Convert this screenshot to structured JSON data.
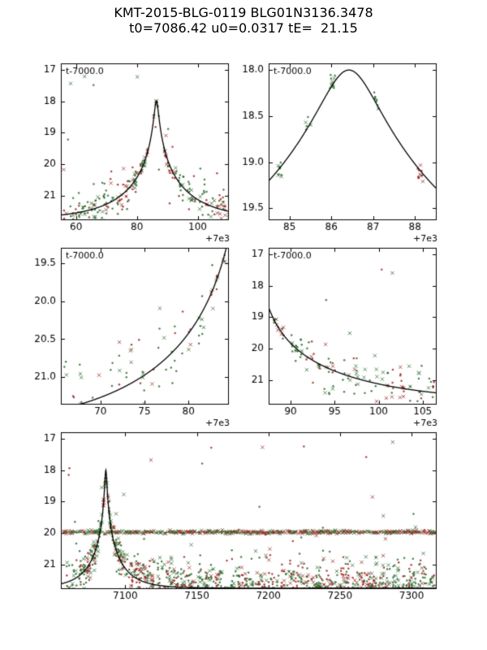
{
  "chart_data": {
    "type": "scatter",
    "title": "KMT-2015-BLG-0119 BLG01N3136.3478",
    "subtitle": "t0=7086.42 u0=0.0317 tE=  21.15",
    "model": {
      "t0": 7086.42,
      "u0": 0.0317,
      "tE": 21.15,
      "baseline_mag": 21.75,
      "color": "#000000",
      "line_width": 1.3
    },
    "point_colors": {
      "green": "#2a6b2a",
      "red": "#9b2727"
    },
    "marker": {
      "dot_radius": 1.25,
      "x_arm": 2.1,
      "x_fraction": 0.32,
      "alpha": 0.85
    },
    "axis_style": {
      "frame_color": "#000000",
      "tick_len": 4,
      "tick_label_size": 12,
      "annotation_size": 11,
      "offset_label_size": 11
    },
    "panels": [
      {
        "name": "top-left",
        "x_offset": 7000,
        "xlim": [
          55,
          110
        ],
        "ylim_bright": 16.8,
        "ylim_faint": 21.75,
        "xticks": [
          {
            "v": 60,
            "label": "60"
          },
          {
            "v": 80,
            "label": "80"
          },
          {
            "v": 100,
            "label": "100"
          }
        ],
        "yticks": [
          {
            "v": 17,
            "label": "17"
          },
          {
            "v": 18,
            "label": "18"
          },
          {
            "v": 19,
            "label": "19"
          },
          {
            "v": 20,
            "label": "20"
          },
          {
            "v": 21,
            "label": "21"
          }
        ],
        "annotation": "t-7000.0",
        "offset_label": "+7e3",
        "scatter": {
          "seed": 11,
          "t_start": 56,
          "t_end": 110,
          "night_step": 0.7,
          "night_jitter": 0.25,
          "skip_frac": 0.12,
          "pts_min": 2,
          "pts_max": 6,
          "intra_spread": 0.18,
          "sigma_base": 0.05,
          "sigma_faint_coef": 0.13,
          "sigma_faint_ref": 19.3,
          "outlier_frac": 0.1,
          "outlier_sigma": 0.9,
          "extreme_frac": 0.006,
          "green_frac": 0.62
        }
      },
      {
        "name": "top-right",
        "x_offset": 7000,
        "xlim": [
          84.5,
          88.5
        ],
        "ylim_bright": 17.93,
        "ylim_faint": 19.62,
        "xticks": [
          {
            "v": 85,
            "label": "85"
          },
          {
            "v": 86,
            "label": "86"
          },
          {
            "v": 87,
            "label": "87"
          },
          {
            "v": 88,
            "label": "88"
          }
        ],
        "yticks": [
          {
            "v": 18.0,
            "label": "18.0"
          },
          {
            "v": 18.5,
            "label": "18.5"
          },
          {
            "v": 19.0,
            "label": "19.0"
          },
          {
            "v": 19.5,
            "label": "19.5"
          }
        ],
        "annotation": "t-7000.0",
        "offset_label": "+7e3",
        "scatter": {
          "seed": 22,
          "nights": [
            84.78,
            85.45,
            86.02,
            87.05,
            88.12
          ],
          "pts_min": 5,
          "pts_max": 11,
          "intra_spread": 0.07,
          "sigma_base": 0.07,
          "sigma_faint_coef": 0,
          "sigma_faint_ref": 0,
          "outlier_frac": 0,
          "outlier_sigma": 0,
          "extreme_frac": 0,
          "green_frac": 0.6
        }
      },
      {
        "name": "middle-left",
        "x_offset": 7000,
        "xlim": [
          65.5,
          84.5
        ],
        "ylim_bright": 19.3,
        "ylim_faint": 21.35,
        "xticks": [
          {
            "v": 70,
            "label": "70"
          },
          {
            "v": 75,
            "label": "75"
          },
          {
            "v": 80,
            "label": "80"
          }
        ],
        "yticks": [
          {
            "v": 19.5,
            "label": "19.5"
          },
          {
            "v": 20.0,
            "label": "20.0"
          },
          {
            "v": 20.5,
            "label": "20.5"
          },
          {
            "v": 21.0,
            "label": "21.0"
          }
        ],
        "annotation": "t-7000.0",
        "offset_label": "+7e3",
        "scatter": {
          "seed": 33,
          "t_start": 66,
          "t_end": 84.4,
          "night_step": 0.75,
          "night_jitter": 0.3,
          "skip_frac": 0.12,
          "pts_min": 2,
          "pts_max": 5,
          "intra_spread": 0.15,
          "sigma_base": 0.08,
          "sigma_faint_coef": 0.16,
          "sigma_faint_ref": 19.5,
          "outlier_frac": 0.07,
          "outlier_sigma": 0.8,
          "extreme_frac": 0,
          "green_frac": 0.62
        }
      },
      {
        "name": "middle-right",
        "x_offset": 7000,
        "xlim": [
          87.5,
          106.5
        ],
        "ylim_bright": 16.8,
        "ylim_faint": 21.75,
        "xticks": [
          {
            "v": 90,
            "label": "90"
          },
          {
            "v": 95,
            "label": "95"
          },
          {
            "v": 100,
            "label": "100"
          },
          {
            "v": 105,
            "label": "105"
          }
        ],
        "yticks": [
          {
            "v": 17,
            "label": "17"
          },
          {
            "v": 18,
            "label": "18"
          },
          {
            "v": 19,
            "label": "19"
          },
          {
            "v": 20,
            "label": "20"
          },
          {
            "v": 21,
            "label": "21"
          }
        ],
        "annotation": "t-7000.0",
        "offset_label": "+7e3",
        "scatter": {
          "seed": 44,
          "t_start": 88,
          "t_end": 106.4,
          "night_step": 0.65,
          "night_jitter": 0.25,
          "skip_frac": 0.1,
          "pts_min": 3,
          "pts_max": 7,
          "intra_spread": 0.15,
          "sigma_base": 0.1,
          "sigma_faint_coef": 0.14,
          "sigma_faint_ref": 19.3,
          "outlier_frac": 0.08,
          "outlier_sigma": 0.9,
          "extreme_frac": 0.006,
          "green_frac": 0.6
        }
      },
      {
        "name": "bottom",
        "x_offset": 0,
        "xlim": [
          7055,
          7317
        ],
        "ylim_bright": 16.8,
        "ylim_faint": 21.75,
        "xticks": [
          {
            "v": 7100,
            "label": "7100"
          },
          {
            "v": 7150,
            "label": "7150"
          },
          {
            "v": 7200,
            "label": "7200"
          },
          {
            "v": 7250,
            "label": "7250"
          },
          {
            "v": 7300,
            "label": "7300"
          }
        ],
        "yticks": [
          {
            "v": 17,
            "label": "17"
          },
          {
            "v": 18,
            "label": "18"
          },
          {
            "v": 19,
            "label": "19"
          },
          {
            "v": 20,
            "label": "20"
          },
          {
            "v": 21,
            "label": "21"
          }
        ],
        "scatter": {
          "seed": 55,
          "t_start": 7057,
          "t_end": 7316,
          "night_step": 1.0,
          "night_jitter": 0.3,
          "skip_frac": 0.1,
          "pts_min": 3,
          "pts_max": 9,
          "intra_spread": 0.28,
          "sigma_base": 0.07,
          "sigma_faint_coef": 0.15,
          "sigma_faint_ref": 19.3,
          "outlier_frac": 0.06,
          "outlier_sigma": 1.0,
          "extreme_frac": 0.01,
          "green_frac": 0.6
        },
        "band": {
          "mag": 19.97,
          "sigma": 0.025,
          "per_night_min": 1,
          "per_night_max": 3
        }
      }
    ]
  }
}
